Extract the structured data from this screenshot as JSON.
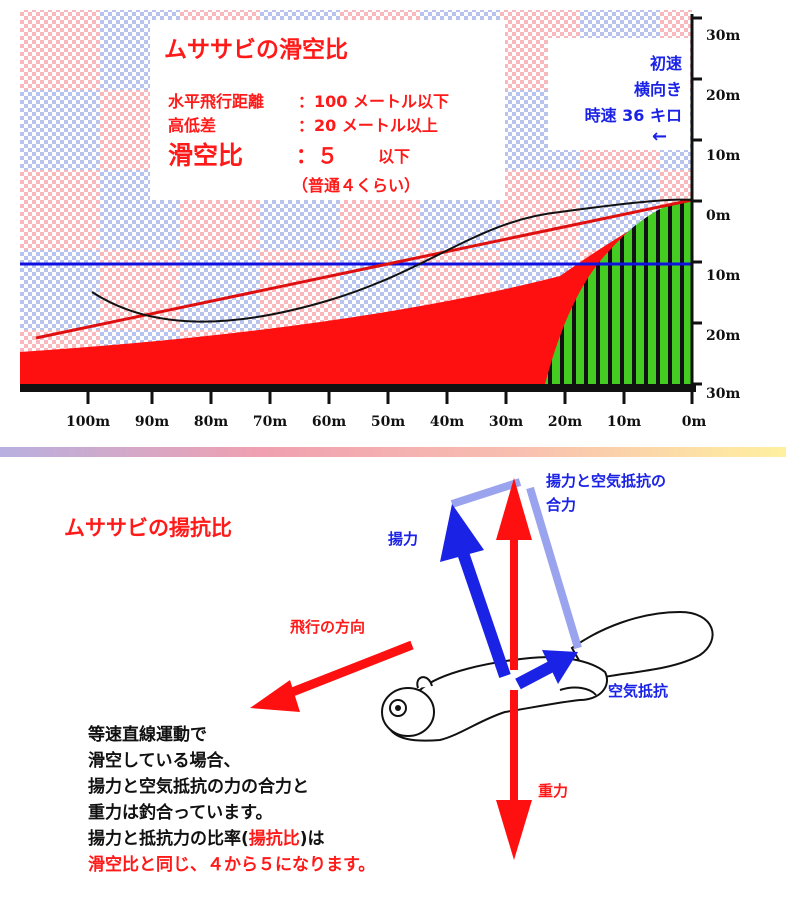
{
  "glide_chart": {
    "title": "ムササビの滑空比",
    "horizontal_label": "水平飛行距離",
    "horizontal_value": "：100 メートル以下",
    "height_label": "高低差",
    "height_value": "：20 メートル以上",
    "ratio_label": "滑空比",
    "ratio_value": "：５",
    "ratio_suffix": "以下",
    "ratio_note": "（普通４くらい）",
    "initial_speed": {
      "line1": "初速",
      "line2": "横向き",
      "line3": "時速 36 キロ",
      "arrow": "←"
    },
    "y_ticks": [
      "30m",
      "20m",
      "10m",
      "0m",
      "10m",
      "20m",
      "30m"
    ],
    "x_ticks": [
      "100m",
      "90m",
      "80m",
      "70m",
      "60m",
      "50m",
      "40m",
      "30m",
      "20m",
      "10m",
      "0m"
    ],
    "colors": {
      "ground": "#ff1010",
      "stripe_green": "#44cc22",
      "path_line": "#111111",
      "glide_line": "#e01010",
      "level_line": "#1010e0"
    }
  },
  "chart_data": {
    "type": "line",
    "xlabel": "",
    "ylabel": "",
    "x_axis_ticks": [
      100,
      90,
      80,
      70,
      60,
      50,
      40,
      30,
      20,
      10,
      0
    ],
    "y_axis_ticks": [
      30,
      20,
      10,
      0,
      -10,
      -20,
      -30
    ],
    "series": [
      {
        "x": [
          0,
          113
        ],
        "y": [
          0,
          -22
        ]
      },
      {
        "x": [
          0,
          113
        ],
        "y": [
          -10,
          -10
        ]
      },
      {
        "x": [
          0,
          5,
          15,
          25,
          35,
          45,
          55,
          65,
          75,
          85,
          95,
          100
        ],
        "y": [
          0,
          -1,
          -2,
          -4,
          -6,
          -9.5,
          -13,
          -17,
          -19.5,
          -20,
          -18,
          -14
        ]
      }
    ]
  },
  "lift_diagram": {
    "title": "ムササビの揚抗比",
    "flight_direction": "飛行の方向",
    "lift": "揚力",
    "resultant_line1": "揚力と空気抵抗の",
    "resultant_line2": "合力",
    "drag": "空気抵抗",
    "gravity": "重力",
    "body_text": {
      "line1": "等速直線運動で",
      "line2": "滑空している場合、",
      "line3": "揚力と空気抵抗の力の合力と",
      "line4": "重力は釣合っています。",
      "line5_a": "揚力と抵抗力の比率(",
      "line5_b": "揚抗比",
      "line5_c": ")は",
      "line6": "滑空比と同じ、４から５になります。"
    }
  }
}
